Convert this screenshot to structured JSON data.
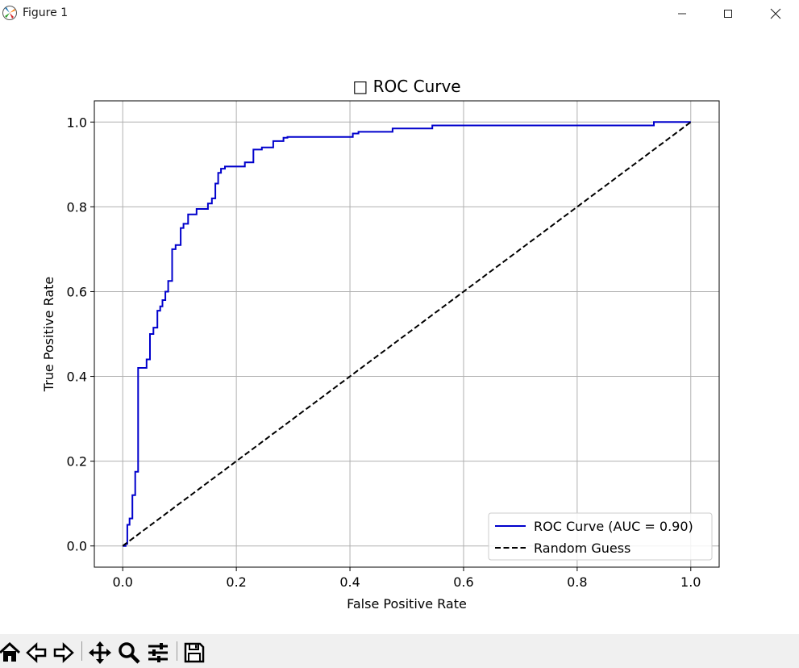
{
  "window": {
    "title": "Figure 1",
    "controls": [
      "minimize",
      "maximize",
      "close"
    ]
  },
  "toolbar": {
    "items": [
      {
        "name": "home",
        "icon": "home-icon"
      },
      {
        "name": "back",
        "icon": "back-arrow-icon"
      },
      {
        "name": "forward",
        "icon": "forward-arrow-icon"
      },
      {
        "name": "pan",
        "icon": "move-icon"
      },
      {
        "name": "zoom",
        "icon": "magnifier-icon"
      },
      {
        "name": "configure",
        "icon": "sliders-icon"
      },
      {
        "name": "save",
        "icon": "floppy-disk-icon"
      }
    ]
  },
  "chart_data": {
    "type": "line",
    "title": "□ ROC Curve",
    "xlabel": "False Positive Rate",
    "ylabel": "True Positive Rate",
    "xlim": [
      -0.05,
      1.05
    ],
    "ylim": [
      -0.05,
      1.05
    ],
    "xticks": [
      0.0,
      0.2,
      0.4,
      0.6,
      0.8,
      1.0
    ],
    "yticks": [
      0.0,
      0.2,
      0.4,
      0.6,
      0.8,
      1.0
    ],
    "xtick_labels": [
      "0.0",
      "0.2",
      "0.4",
      "0.6",
      "0.8",
      "1.0"
    ],
    "ytick_labels": [
      "0.0",
      "0.2",
      "0.4",
      "0.6",
      "0.8",
      "1.0"
    ],
    "grid": true,
    "legend_position": "lower-right",
    "series": [
      {
        "name": "ROC Curve (AUC = 0.90)",
        "color": "#0000cc",
        "style": "solid",
        "step": true,
        "x": [
          0.0,
          0.005,
          0.005,
          0.008,
          0.008,
          0.012,
          0.012,
          0.017,
          0.017,
          0.022,
          0.022,
          0.027,
          0.027,
          0.031,
          0.031,
          0.042,
          0.042,
          0.048,
          0.048,
          0.054,
          0.054,
          0.061,
          0.061,
          0.066,
          0.066,
          0.07,
          0.07,
          0.075,
          0.075,
          0.08,
          0.08,
          0.087,
          0.087,
          0.093,
          0.093,
          0.102,
          0.102,
          0.107,
          0.107,
          0.115,
          0.115,
          0.13,
          0.13,
          0.15,
          0.15,
          0.157,
          0.157,
          0.163,
          0.163,
          0.168,
          0.168,
          0.173,
          0.173,
          0.18,
          0.18,
          0.215,
          0.215,
          0.23,
          0.23,
          0.245,
          0.245,
          0.265,
          0.265,
          0.283,
          0.283,
          0.29,
          0.29,
          0.405,
          0.405,
          0.415,
          0.415,
          0.475,
          0.475,
          0.545,
          0.545,
          0.935,
          0.935,
          1.0
        ],
        "y": [
          0.0,
          0.0,
          0.005,
          0.005,
          0.05,
          0.05,
          0.065,
          0.065,
          0.12,
          0.12,
          0.175,
          0.175,
          0.42,
          0.42,
          0.42,
          0.42,
          0.44,
          0.44,
          0.5,
          0.5,
          0.515,
          0.515,
          0.555,
          0.555,
          0.565,
          0.565,
          0.58,
          0.58,
          0.6,
          0.6,
          0.625,
          0.625,
          0.7,
          0.7,
          0.71,
          0.71,
          0.75,
          0.75,
          0.76,
          0.76,
          0.782,
          0.782,
          0.795,
          0.795,
          0.808,
          0.808,
          0.82,
          0.82,
          0.855,
          0.855,
          0.88,
          0.88,
          0.89,
          0.89,
          0.895,
          0.895,
          0.905,
          0.905,
          0.935,
          0.935,
          0.94,
          0.94,
          0.955,
          0.955,
          0.963,
          0.963,
          0.965,
          0.965,
          0.973,
          0.973,
          0.977,
          0.977,
          0.985,
          0.985,
          0.992,
          0.992,
          1.0,
          1.0
        ]
      },
      {
        "name": "Random Guess",
        "color": "#000000",
        "style": "dashed",
        "x": [
          0.0,
          1.0
        ],
        "y": [
          0.0,
          1.0
        ]
      }
    ]
  }
}
